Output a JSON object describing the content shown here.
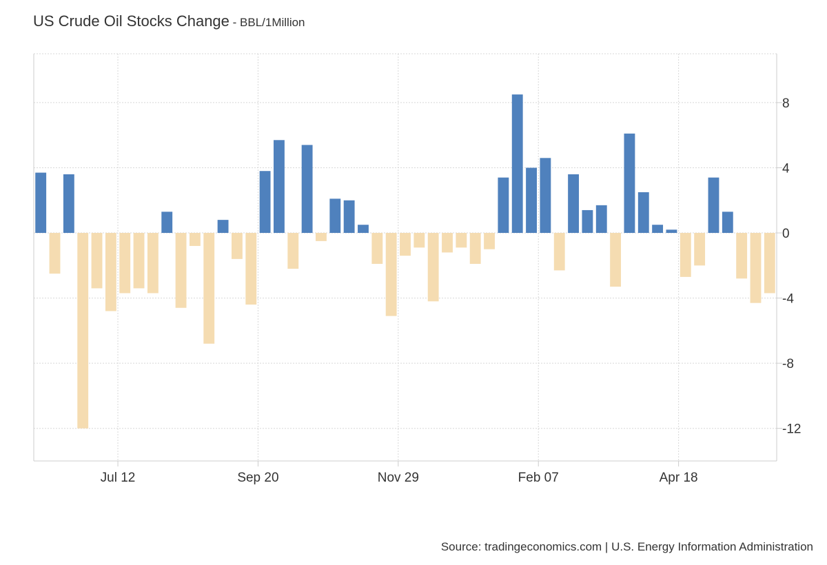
{
  "header": {
    "title": "US Crude Oil Stocks Change",
    "separator": " - ",
    "unit": "BBL/1Million"
  },
  "footer": {
    "source": "Source: tradingeconomics.com | U.S. Energy Information Administration"
  },
  "colors": {
    "positive": "#4f81bd",
    "negative": "#f5dcb1",
    "grid": "#d7d7d7",
    "axis": "#cccccc",
    "text": "#333333"
  },
  "chart_data": {
    "type": "bar",
    "title": "US Crude Oil Stocks Change",
    "unit": "BBL/1Million",
    "ylim": [
      -14,
      11
    ],
    "yticks": [
      8,
      4,
      0,
      -4,
      -8,
      -12
    ],
    "ytick_labels": [
      "8",
      "4",
      "0",
      "-4",
      "-8",
      "-12"
    ],
    "xtick_labels": [
      "Jul 12",
      "Sep 20",
      "Nov 29",
      "Feb 07",
      "Apr 18"
    ],
    "xtick_indices": [
      5.5,
      15.5,
      25.5,
      35.5,
      45.5
    ],
    "grid": true,
    "legend": "none",
    "y_axis_position": "right",
    "values": [
      3.7,
      -2.5,
      3.6,
      -12.0,
      -3.4,
      -4.8,
      -3.7,
      -3.4,
      -3.7,
      1.3,
      -4.6,
      -0.8,
      -6.8,
      0.8,
      -1.6,
      -4.4,
      3.8,
      5.7,
      -2.2,
      5.4,
      -0.5,
      2.1,
      2.0,
      0.5,
      -1.9,
      -5.1,
      -1.4,
      -0.9,
      -4.2,
      -1.2,
      -0.9,
      -1.9,
      -1.0,
      3.4,
      8.5,
      4.0,
      4.6,
      -2.3,
      3.6,
      1.4,
      1.7,
      -3.3,
      6.1,
      2.5,
      0.5,
      0.2,
      -2.7,
      -2.0,
      3.4,
      1.3,
      -2.8,
      -4.3,
      -3.7
    ]
  }
}
